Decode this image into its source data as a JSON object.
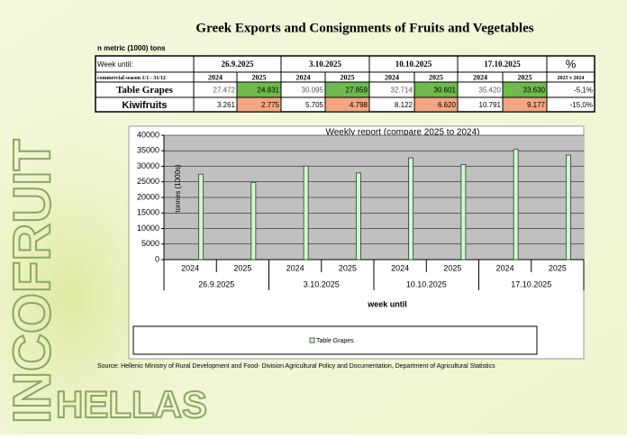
{
  "title": "Greek Exports and Consignments of Fruits and Vegetables",
  "subtitle": "n metric (1000) tons",
  "logo": {
    "vertical": "INCOFRUIT",
    "bottom": "HELLAS"
  },
  "table": {
    "header": [
      "Week until:",
      "26.9.2025",
      "3.10.2025",
      "10.10.2025",
      "17.10.2025",
      "%"
    ],
    "subheader": [
      "commercial season 1/1 - 31/12",
      "2024",
      "2025",
      "2024",
      "2025",
      "2024",
      "2025",
      "2024",
      "2025",
      "2025 v 2024"
    ],
    "rows": [
      [
        "Table Grapes",
        "27.472",
        "24.831",
        "30.095",
        "27.859",
        "32.714",
        "30.601",
        "35.420",
        "33.630",
        "-5,1%"
      ],
      [
        "Kiwifruits",
        "3.261",
        "2.775",
        "5.705",
        "4.798",
        "8.122",
        "6.620",
        "10.791",
        "9.177",
        "-15,0%"
      ]
    ]
  },
  "chart_data": {
    "type": "bar",
    "title": "Weekly report (compare 2025 to 2024)",
    "y_label": "tonnes (1000s)",
    "x_label": "week until",
    "categories": [
      "2024",
      "2025",
      "2024",
      "2025",
      "2024",
      "2025",
      "2024",
      "2025"
    ],
    "groups": [
      "26.9.2025",
      "3.10.2025",
      "10.10.2025",
      "17.10.2025"
    ],
    "series": [
      {
        "name": "Table Grapes",
        "color": "#ccffcc",
        "values": [
          27472,
          24831,
          30095,
          27859,
          32714,
          30601,
          35420,
          33630
        ]
      }
    ],
    "ylim": [
      0,
      40000
    ],
    "yticks": [
      0,
      5000,
      10000,
      15000,
      20000,
      25000,
      30000,
      35000,
      40000
    ],
    "grid": true
  },
  "source": "Source: Hellenic Ministry of Rural Development and Food- Division Agricultural Policy and Documentation, Department of Agricultural Statistics"
}
